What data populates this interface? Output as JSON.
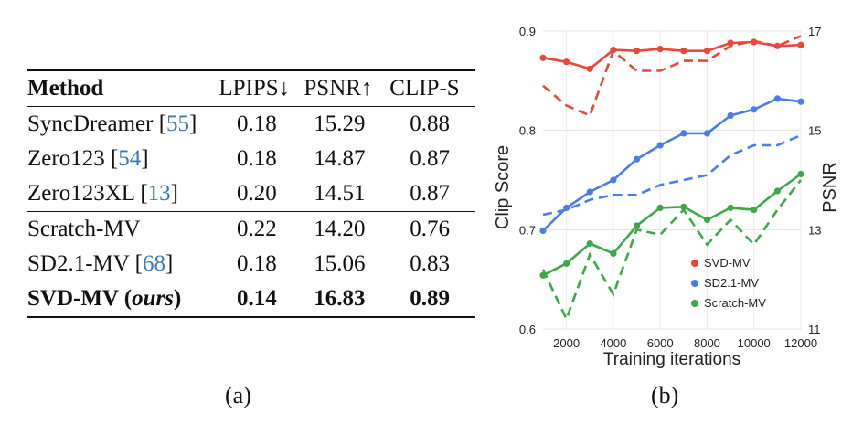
{
  "table": {
    "headers": {
      "method": "Method",
      "lpips": "LPIPS↓",
      "psnr": "PSNR↑",
      "clip": "CLIP-S"
    },
    "rows": [
      {
        "name": "SyncDreamer ",
        "cite": "55",
        "lpips": "0.18",
        "psnr": "15.29",
        "clip": "0.88"
      },
      {
        "name": "Zero123 ",
        "cite": "54",
        "lpips": "0.18",
        "psnr": "14.87",
        "clip": "0.87"
      },
      {
        "name": "Zero123XL ",
        "cite": "13",
        "lpips": "0.20",
        "psnr": "14.51",
        "clip": "0.87"
      },
      {
        "name": "Scratch-MV",
        "cite": "",
        "lpips": "0.22",
        "psnr": "14.20",
        "clip": "0.76"
      },
      {
        "name": "SD2.1-MV ",
        "cite": "68",
        "lpips": "0.18",
        "psnr": "15.06",
        "clip": "0.83"
      },
      {
        "name": "SVD-MV (",
        "name_italic": "ours",
        "name_end": ")",
        "lpips": "0.14",
        "psnr": "16.83",
        "clip": "0.89"
      }
    ]
  },
  "captions": {
    "a": "(a)",
    "b": "(b)"
  },
  "chart_data": {
    "type": "line",
    "xlabel": "Training iterations",
    "ylabel_left": "Clip Score",
    "ylabel_right": "PSNR",
    "xlim": [
      1000,
      12000
    ],
    "ylim_left": [
      0.6,
      0.9
    ],
    "ylim_right": [
      11,
      17
    ],
    "xticks": [
      "2000",
      "4000",
      "6000",
      "8000",
      "10000",
      "12000"
    ],
    "yticks_left": [
      "0.6",
      "0.7",
      "0.8",
      "0.9"
    ],
    "yticks_right": [
      "11",
      "13",
      "15",
      "17"
    ],
    "grid": true,
    "legend_position": "bottom-right",
    "x": [
      1000,
      2000,
      3000,
      4000,
      5000,
      6000,
      7000,
      8000,
      9000,
      10000,
      11000,
      12000
    ],
    "series": [
      {
        "name": "SVD-MV",
        "color": "#e8473a",
        "clip": [
          0.873,
          0.869,
          0.862,
          0.881,
          0.88,
          0.882,
          0.88,
          0.88,
          0.888,
          0.889,
          0.885,
          0.886
        ],
        "psnr": [
          15.9,
          15.5,
          15.3,
          16.6,
          16.2,
          16.2,
          16.4,
          16.4,
          16.7,
          16.8,
          16.7,
          16.9
        ]
      },
      {
        "name": "SD2.1-MV",
        "color": "#4a7de8",
        "clip": [
          0.699,
          0.722,
          0.738,
          0.75,
          0.771,
          0.785,
          0.797,
          0.797,
          0.815,
          0.821,
          0.832,
          0.829
        ],
        "psnr": [
          13.3,
          13.4,
          13.6,
          13.7,
          13.7,
          13.9,
          14.0,
          14.1,
          14.5,
          14.7,
          14.7,
          14.9
        ]
      },
      {
        "name": "Scratch-MV",
        "color": "#3ca84a",
        "clip": [
          0.654,
          0.666,
          0.686,
          0.676,
          0.704,
          0.722,
          0.723,
          0.71,
          0.722,
          0.72,
          0.739,
          0.756
        ],
        "psnr": [
          12.2,
          11.2,
          12.5,
          11.7,
          13.0,
          12.9,
          13.4,
          12.7,
          13.2,
          12.7,
          13.4,
          14.0
        ]
      }
    ]
  }
}
